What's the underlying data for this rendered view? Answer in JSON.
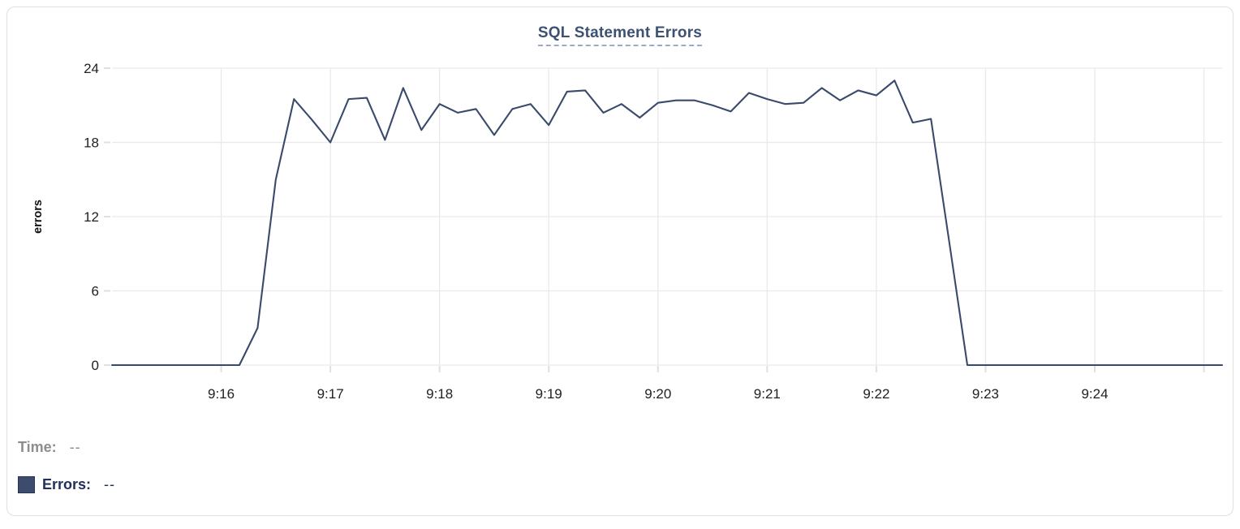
{
  "chart_data": {
    "type": "line",
    "title": "SQL Statement Errors",
    "xlabel": "",
    "ylabel": "errors",
    "ylim": [
      0,
      24
    ],
    "y_ticks": [
      0,
      6,
      12,
      18,
      24
    ],
    "x_range": [
      "9:15:00",
      "9:25:10"
    ],
    "x_ticks": [
      {
        "label": "9:16",
        "t": "9:16:00"
      },
      {
        "label": "9:17",
        "t": "9:17:00"
      },
      {
        "label": "9:18",
        "t": "9:18:00"
      },
      {
        "label": "9:19",
        "t": "9:19:00"
      },
      {
        "label": "9:20",
        "t": "9:20:00"
      },
      {
        "label": "9:21",
        "t": "9:21:00"
      },
      {
        "label": "9:22",
        "t": "9:22:00"
      },
      {
        "label": "9:23",
        "t": "9:23:00"
      },
      {
        "label": "9:24",
        "t": "9:24:00"
      },
      {
        "label": "",
        "t": "9:25:00"
      }
    ],
    "grid": true,
    "legend_position": "bottom-left",
    "series": [
      {
        "name": "Errors",
        "color": "#3a4a6b",
        "times": [
          "9:15:00",
          "9:15:10",
          "9:15:20",
          "9:15:30",
          "9:15:40",
          "9:15:50",
          "9:16:00",
          "9:16:10",
          "9:16:20",
          "9:16:30",
          "9:16:40",
          "9:16:50",
          "9:17:00",
          "9:17:10",
          "9:17:20",
          "9:17:30",
          "9:17:40",
          "9:17:50",
          "9:18:00",
          "9:18:10",
          "9:18:20",
          "9:18:30",
          "9:18:40",
          "9:18:50",
          "9:19:00",
          "9:19:10",
          "9:19:20",
          "9:19:30",
          "9:19:40",
          "9:19:50",
          "9:20:00",
          "9:20:10",
          "9:20:20",
          "9:20:30",
          "9:20:40",
          "9:20:50",
          "9:21:00",
          "9:21:10",
          "9:21:20",
          "9:21:30",
          "9:21:40",
          "9:21:50",
          "9:22:00",
          "9:22:10",
          "9:22:20",
          "9:22:30",
          "9:22:40",
          "9:22:50",
          "9:23:00",
          "9:23:10",
          "9:23:20",
          "9:23:30",
          "9:23:40",
          "9:23:50",
          "9:24:00",
          "9:24:10",
          "9:24:20",
          "9:24:30",
          "9:24:40",
          "9:24:50",
          "9:25:00",
          "9:25:10"
        ],
        "values": [
          0,
          0,
          0,
          0,
          0,
          0,
          0,
          0,
          3,
          15,
          21.5,
          19.8,
          18,
          21.5,
          21.6,
          18.2,
          22.4,
          19,
          21.1,
          20.4,
          20.7,
          18.6,
          20.7,
          21.1,
          19.4,
          22.1,
          22.2,
          20.4,
          21.1,
          20,
          21.2,
          21.4,
          21.4,
          21,
          20.5,
          22,
          21.5,
          21.1,
          21.2,
          22.4,
          21.4,
          22.2,
          21.8,
          23,
          19.6,
          19.9,
          10,
          0,
          0,
          0,
          0,
          0,
          0,
          0,
          0,
          0,
          0,
          0,
          0,
          0,
          0,
          0
        ]
      }
    ]
  },
  "legend": {
    "time_label": "Time:",
    "time_value": "--",
    "series_label": "Errors:",
    "series_value": "--"
  },
  "colors": {
    "line": "#3a4a6b",
    "grid": "#e9e9e9",
    "tick_mark": "#e0e0e0",
    "tick_text": "#212121",
    "title": "#3d5174",
    "title_underline": "#9baac9",
    "time_label": "#8d8d8d",
    "errors_label": "#22305a",
    "swatch_fill": "#3d4c6b",
    "swatch_border": "#273459",
    "card_border": "#e0e0e0",
    "card_bg": "#ffffff"
  }
}
